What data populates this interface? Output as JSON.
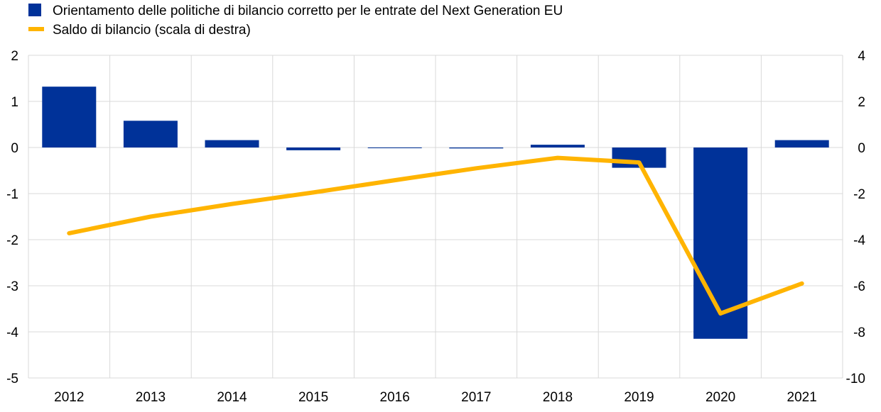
{
  "chart_data": {
    "type": "bar",
    "categories": [
      "2012",
      "2013",
      "2014",
      "2015",
      "2016",
      "2017",
      "2018",
      "2019",
      "2020",
      "2021"
    ],
    "series": [
      {
        "name": "Orientamento delle politiche di bilancio corretto per le entrate del Next Generation EU",
        "type": "bar",
        "axis": "left",
        "color": "#003299",
        "values": [
          1.32,
          0.58,
          0.16,
          -0.06,
          0.0,
          -0.02,
          0.06,
          -0.44,
          -4.15,
          0.16
        ]
      },
      {
        "name": "Saldo di bilancio (scala di destra)",
        "type": "line",
        "axis": "right",
        "color": "#FFB400",
        "values": [
          -3.72,
          -3.0,
          -2.45,
          -1.95,
          -1.42,
          -0.9,
          -0.45,
          -0.65,
          -7.2,
          -5.9
        ]
      }
    ],
    "y_left": {
      "min": -5,
      "max": 2,
      "ticks": [
        "2",
        "1",
        "0",
        "-1",
        "-2",
        "-3",
        "-4",
        "-5"
      ],
      "tick_values": [
        2,
        1,
        0,
        -1,
        -2,
        -3,
        -4,
        -5
      ]
    },
    "y_right": {
      "min": -10,
      "max": 4,
      "ticks": [
        "4",
        "2",
        "0",
        "-2",
        "-4",
        "-6",
        "-8",
        "-10"
      ],
      "tick_values": [
        4,
        2,
        0,
        -2,
        -4,
        -6,
        -8,
        -10
      ]
    },
    "title": "",
    "xlabel": "",
    "ylabel": "",
    "grid": true,
    "legend_position": "top-left"
  }
}
